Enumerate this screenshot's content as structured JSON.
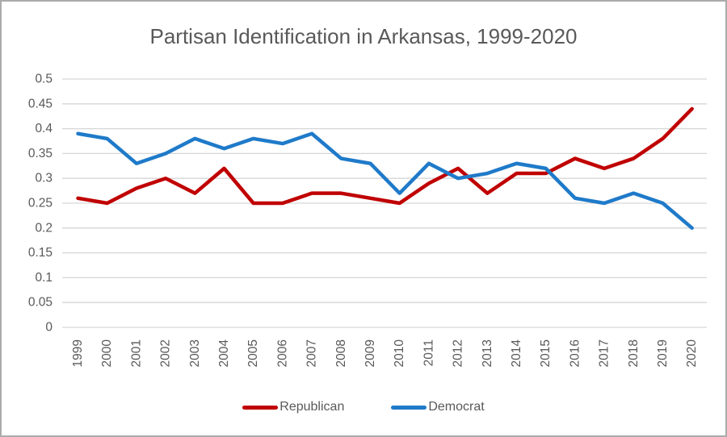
{
  "chart": {
    "title": "Partisan Identification in Arkansas, 1999-2020",
    "colors": {
      "republican": "#C00000",
      "democrat": "#1F7AC9",
      "gridline": "#D6D6D6",
      "axis_text": "#595959",
      "title_text": "#595959",
      "border": "#ABABAB"
    },
    "legend": {
      "republican_label": "Republican",
      "democrat_label": "Democrat"
    }
  },
  "chart_data": {
    "type": "line",
    "title": "Partisan Identification in Arkansas, 1999-2020",
    "xlabel": "",
    "ylabel": "",
    "categories": [
      "1999",
      "2000",
      "2001",
      "2002",
      "2003",
      "2004",
      "2005",
      "2006",
      "2007",
      "2008",
      "2009",
      "2010",
      "2011",
      "2012",
      "2013",
      "2014",
      "2015",
      "2016",
      "2017",
      "2018",
      "2019",
      "2020"
    ],
    "series": [
      {
        "name": "Republican",
        "color": "#C00000",
        "values": [
          0.26,
          0.25,
          0.28,
          0.3,
          0.27,
          0.32,
          0.25,
          0.25,
          0.27,
          0.27,
          0.26,
          0.25,
          0.29,
          0.32,
          0.27,
          0.31,
          0.31,
          0.34,
          0.32,
          0.34,
          0.38,
          0.44
        ]
      },
      {
        "name": "Democrat",
        "color": "#1F7AC9",
        "values": [
          0.39,
          0.38,
          0.33,
          0.35,
          0.38,
          0.36,
          0.38,
          0.37,
          0.39,
          0.34,
          0.33,
          0.27,
          0.33,
          0.3,
          0.31,
          0.33,
          0.32,
          0.26,
          0.25,
          0.27,
          0.25,
          0.2
        ]
      }
    ],
    "ylim": [
      0,
      0.5
    ],
    "ytick_interval": 0.05,
    "ytick_labels": [
      "0",
      "0.05",
      "0.1",
      "0.15",
      "0.2",
      "0.25",
      "0.3",
      "0.35",
      "0.4",
      "0.45",
      "0.5"
    ],
    "x_tick_label_rotation": -90,
    "grid": true,
    "legend_position": "bottom"
  }
}
